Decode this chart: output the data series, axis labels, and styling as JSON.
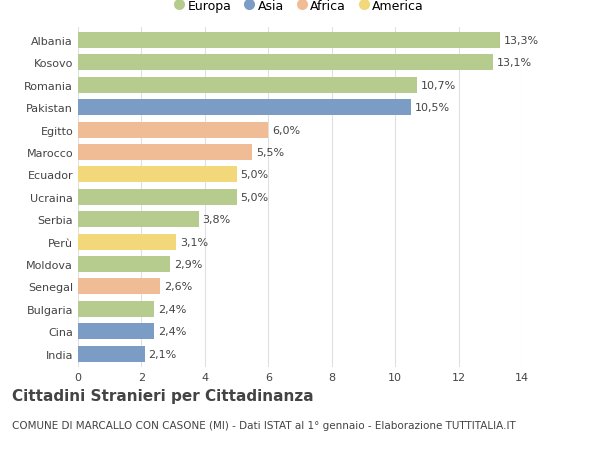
{
  "categories": [
    "Albania",
    "Kosovo",
    "Romania",
    "Pakistan",
    "Egitto",
    "Marocco",
    "Ecuador",
    "Ucraina",
    "Serbia",
    "Perù",
    "Moldova",
    "Senegal",
    "Bulgaria",
    "Cina",
    "India"
  ],
  "values": [
    13.3,
    13.1,
    10.7,
    10.5,
    6.0,
    5.5,
    5.0,
    5.0,
    3.8,
    3.1,
    2.9,
    2.6,
    2.4,
    2.4,
    2.1
  ],
  "labels": [
    "13,3%",
    "13,1%",
    "10,7%",
    "10,5%",
    "6,0%",
    "5,5%",
    "5,0%",
    "5,0%",
    "3,8%",
    "3,1%",
    "2,9%",
    "2,6%",
    "2,4%",
    "2,4%",
    "2,1%"
  ],
  "colors": [
    "#b5cc8e",
    "#b5cc8e",
    "#b5cc8e",
    "#7b9cc4",
    "#f0bc96",
    "#f0bc96",
    "#f2d87a",
    "#b5cc8e",
    "#b5cc8e",
    "#f2d87a",
    "#b5cc8e",
    "#f0bc96",
    "#b5cc8e",
    "#7b9cc4",
    "#7b9cc4"
  ],
  "legend": [
    {
      "label": "Europa",
      "color": "#b5cc8e"
    },
    {
      "label": "Asia",
      "color": "#7b9cc4"
    },
    {
      "label": "Africa",
      "color": "#f0bc96"
    },
    {
      "label": "America",
      "color": "#f2d87a"
    }
  ],
  "xlim": [
    0,
    14
  ],
  "xticks": [
    0,
    2,
    4,
    6,
    8,
    10,
    12,
    14
  ],
  "title": "Cittadini Stranieri per Cittadinanza",
  "subtitle": "COMUNE DI MARCALLO CON CASONE (MI) - Dati ISTAT al 1° gennaio - Elaborazione TUTTITALIA.IT",
  "bg_color": "#ffffff",
  "grid_color": "#e0e0e0",
  "text_color": "#444444",
  "label_fontsize": 8,
  "tick_fontsize": 8,
  "title_fontsize": 11,
  "subtitle_fontsize": 7.5,
  "bar_height": 0.72
}
